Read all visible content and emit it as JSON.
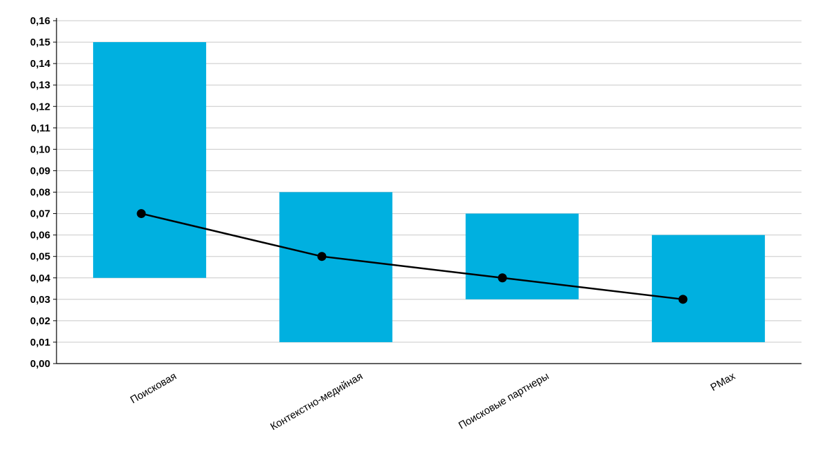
{
  "chart_data": {
    "type": "bar",
    "subtype": "floating-bar-with-line",
    "categories": [
      "Поисковая",
      "Контекстно-медийная",
      "Поисковые партнеры",
      "PMax"
    ],
    "y_tick_labels": [
      "0,00",
      "0,01",
      "0,02",
      "0,03",
      "0,04",
      "0,05",
      "0,06",
      "0,07",
      "0,08",
      "0,09",
      "0,10",
      "0,11",
      "0,12",
      "0,13",
      "0,14",
      "0,15",
      "0,16"
    ],
    "series": [
      {
        "kind": "range-bar",
        "low": [
          0.04,
          0.01,
          0.03,
          0.01
        ],
        "high": [
          0.15,
          0.08,
          0.07,
          0.06
        ],
        "color": "#00b0e0"
      },
      {
        "kind": "line",
        "values": [
          0.07,
          0.05,
          0.04,
          0.03
        ],
        "color": "#000000",
        "marker": "circle"
      }
    ],
    "ylim": [
      0,
      0.16
    ],
    "y_step": 0.01,
    "grid": true,
    "legend": "none",
    "x_label_rotation_deg": -30,
    "colors": {
      "grid": "#c8c8c8",
      "axis": "#000000"
    }
  }
}
